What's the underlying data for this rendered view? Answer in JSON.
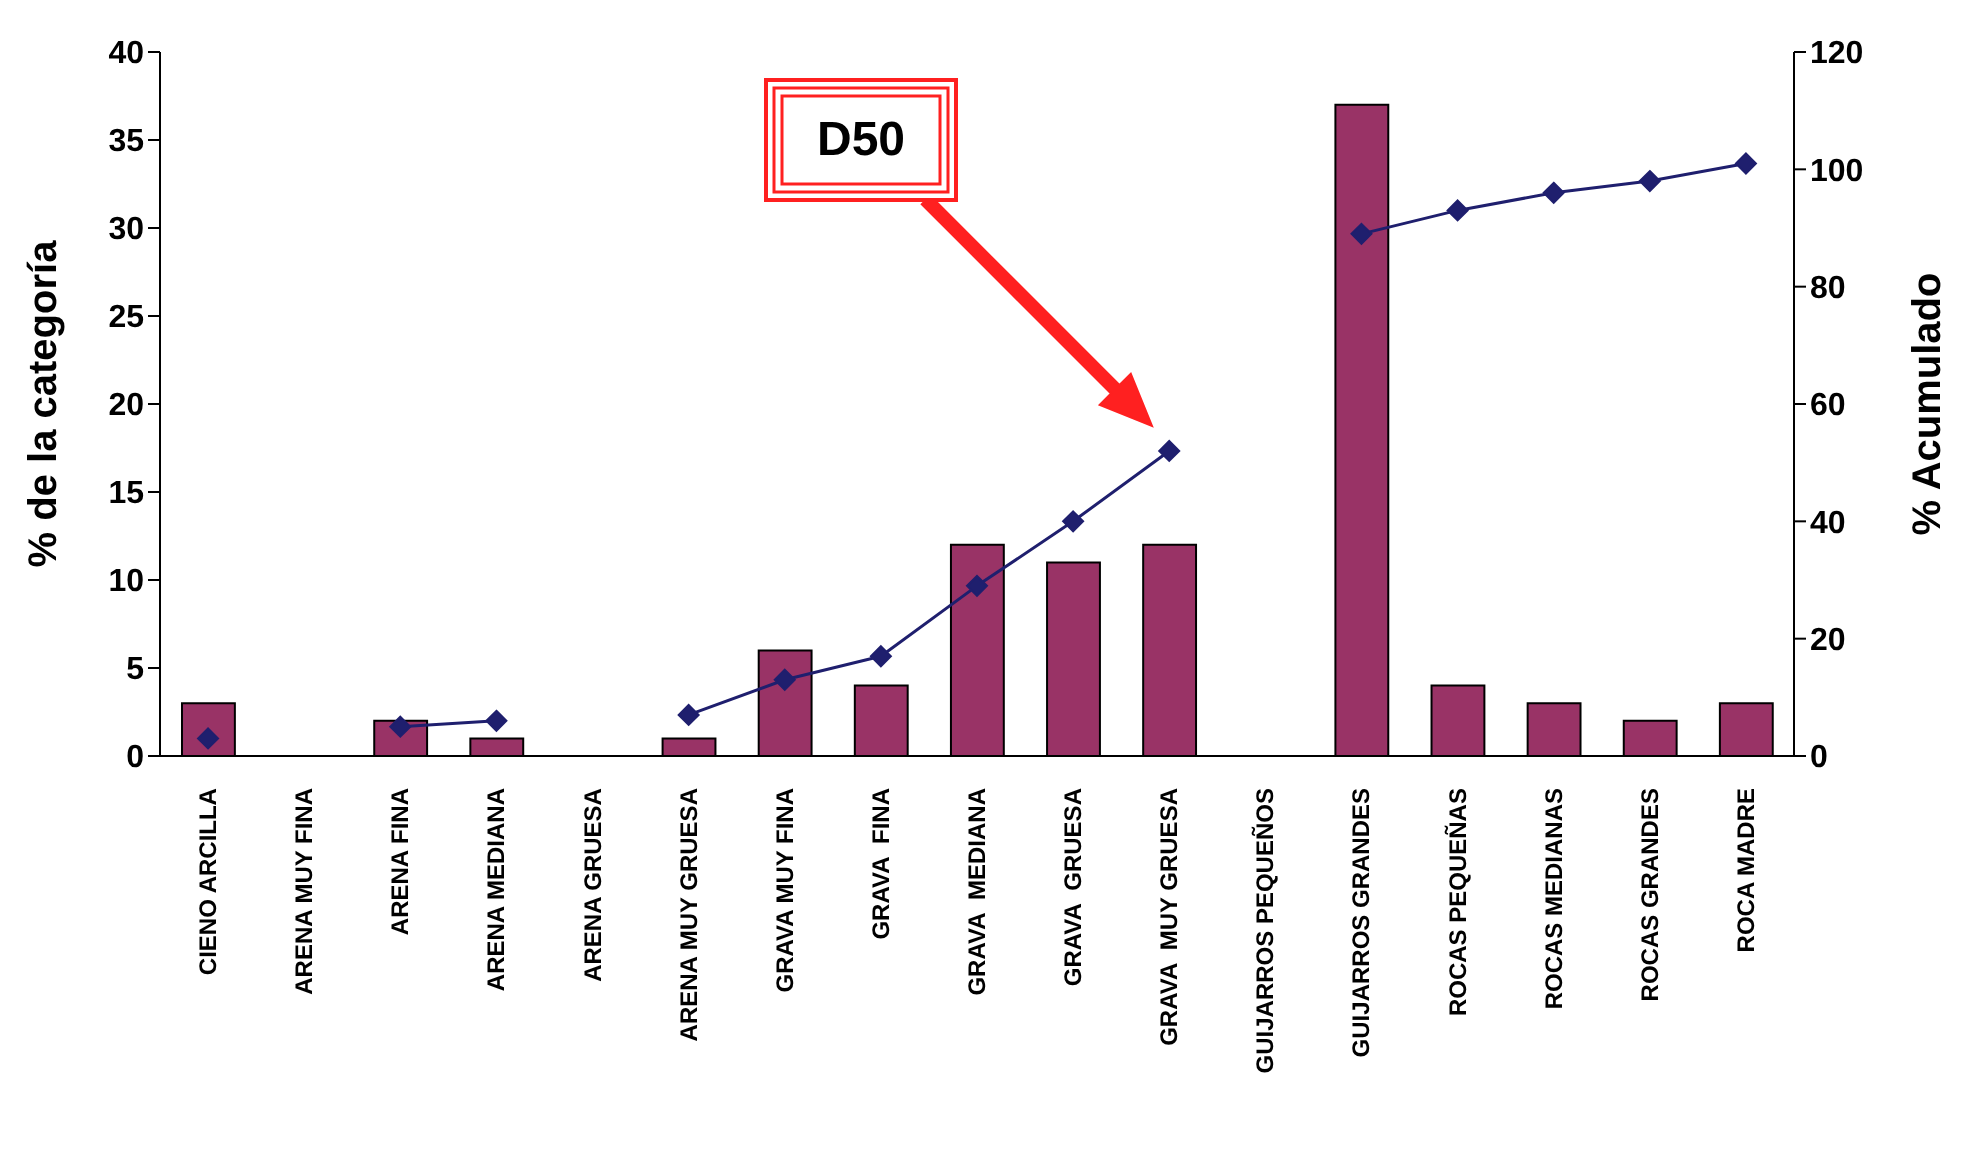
{
  "chart_data": {
    "type": "bar",
    "ylabel": "% de la categoría",
    "y2label": "% Acumulado",
    "categories": [
      "CIENO ARCILLA",
      "ARENA MUY FINA",
      "ARENA FINA",
      "ARENA MEDIANA",
      "ARENA GRUESA",
      "ARENA MUY GRUESA",
      "GRAVA MUY FINA",
      "GRAVA  FINA",
      "GRAVA  MEDIANA",
      "GRAVA  GRUESA",
      "GRAVA  MUY GRUESA",
      "GUIJARROS PEQUEÑOS",
      "GUIJARROS GRANDES",
      "ROCAS PEQUEÑAS",
      "ROCAS MEDIANAS",
      "ROCAS GRANDES",
      "ROCA MADRE"
    ],
    "series": [
      {
        "color": "#993366",
        "values": [
          3,
          0,
          2,
          1,
          0,
          1,
          6,
          4,
          12,
          11,
          12,
          0,
          37,
          4,
          3,
          2,
          3
        ]
      },
      {
        "type": "line",
        "axis": "y2",
        "color": "#1f1f6e",
        "marker": "diamond",
        "values": [
          3,
          null,
          5,
          6,
          null,
          7,
          13,
          17,
          29,
          40,
          52,
          null,
          89,
          93,
          96,
          98,
          101
        ]
      }
    ],
    "ylim": [
      0,
      40
    ],
    "yticks": [
      0,
      5,
      10,
      15,
      20,
      25,
      30,
      35,
      40
    ],
    "y2lim": [
      0,
      120
    ],
    "y2ticks": [
      0,
      20,
      40,
      60,
      80,
      100,
      120
    ],
    "annotations": [
      "D50"
    ]
  }
}
